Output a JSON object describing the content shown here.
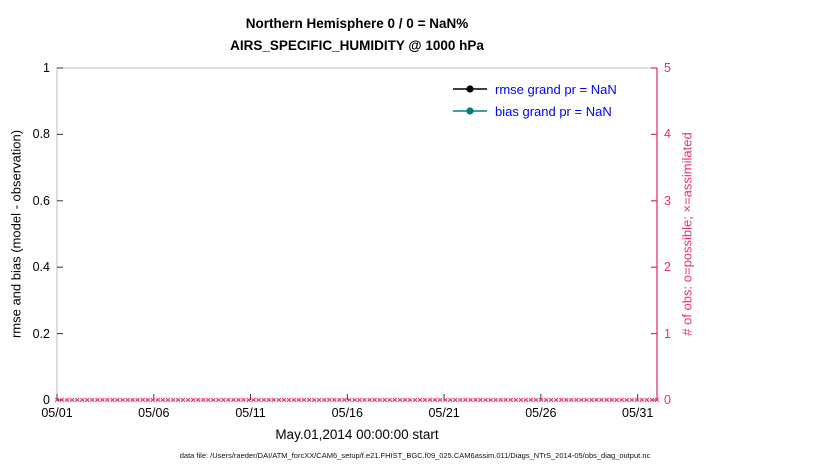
{
  "chart_data": {
    "type": "line",
    "title": "Northern Hemisphere 0 / 0 = NaN%",
    "subtitle": "AIRS_SPECIFIC_HUMIDITY @ 1000 hPa",
    "xlabel": "May.01,2014 00:00:00 start",
    "ylabel_left": "rmse and bias (model - observation)",
    "ylabel_right": "# of obs: o=possible; ×=assimilated",
    "footer": "data file: /Users/raeder/DAI/ATM_forcXX/CAM6_setup/f.e21.FHIST_BGC.f09_025.CAM6assim.011/Diags_NTrS_2014-05/obs_diag_output.nc",
    "x_tick_labels": [
      "05/01",
      "05/06",
      "05/11",
      "05/16",
      "05/21",
      "05/26",
      "05/31"
    ],
    "x_tick_values": [
      0,
      5,
      10,
      15,
      20,
      25,
      30
    ],
    "x_range": [
      0,
      31
    ],
    "y_left": {
      "ticks": [
        "0",
        "0.2",
        "0.4",
        "0.6",
        "0.8",
        "1"
      ],
      "range": [
        0,
        1
      ]
    },
    "y_right": {
      "ticks": [
        "0",
        "1",
        "2",
        "3",
        "4",
        "5"
      ],
      "range": [
        0,
        5
      ]
    },
    "grid": false,
    "legend_position": "top-right",
    "series": [
      {
        "name": "rmse grand pr = NaN",
        "color": "#000000",
        "values": []
      },
      {
        "name": "bias grand pr = NaN",
        "color": "#008080",
        "values": []
      }
    ],
    "obs_counts": {
      "marker": "×",
      "y_value": 0,
      "possible": 0,
      "assimilated": 0,
      "marker_count": 120
    },
    "colors": {
      "frame": "#bdbdbd",
      "tick": "#333333",
      "right_axis": "#e8336e",
      "legend_text": "#0000ff"
    }
  }
}
